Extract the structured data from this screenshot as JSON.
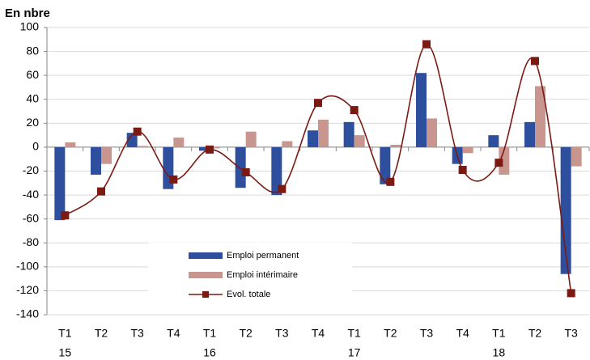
{
  "chart_data": {
    "type": "bar-line",
    "title": "En nbre",
    "categories": [
      "T1",
      "T2",
      "T3",
      "T4",
      "T1",
      "T2",
      "T3",
      "T4",
      "T1",
      "T2",
      "T3",
      "T4",
      "T1",
      "T2",
      "T3"
    ],
    "category_groups": [
      "15",
      null,
      null,
      null,
      "16",
      null,
      null,
      null,
      "17",
      null,
      null,
      null,
      "18",
      null,
      null
    ],
    "series": [
      {
        "name": "Emploi permanent",
        "type": "bar",
        "color": "#2e4f9e",
        "values": [
          -61,
          -23,
          12,
          -35,
          -3,
          -34,
          -40,
          14,
          21,
          -31,
          62,
          -14,
          10,
          21,
          -106
        ]
      },
      {
        "name": "Emploi intérimaire",
        "type": "bar",
        "color": "#c8958f",
        "values": [
          4,
          -14,
          1,
          8,
          -1,
          13,
          5,
          23,
          10,
          2,
          24,
          -5,
          -23,
          51,
          -16
        ]
      },
      {
        "name": "Evol. totale",
        "type": "line",
        "color": "#7b1a12",
        "values": [
          -57,
          -37,
          13,
          -27,
          -2,
          -21,
          -35,
          37,
          31,
          -29,
          86,
          -19,
          -13,
          72,
          -122
        ]
      }
    ],
    "ylim": [
      -140,
      100
    ],
    "yticks": [
      -140,
      -120,
      -100,
      -80,
      -60,
      -40,
      -20,
      0,
      20,
      40,
      60,
      80,
      100
    ],
    "grid": true,
    "legend_position": "bottom-center"
  }
}
